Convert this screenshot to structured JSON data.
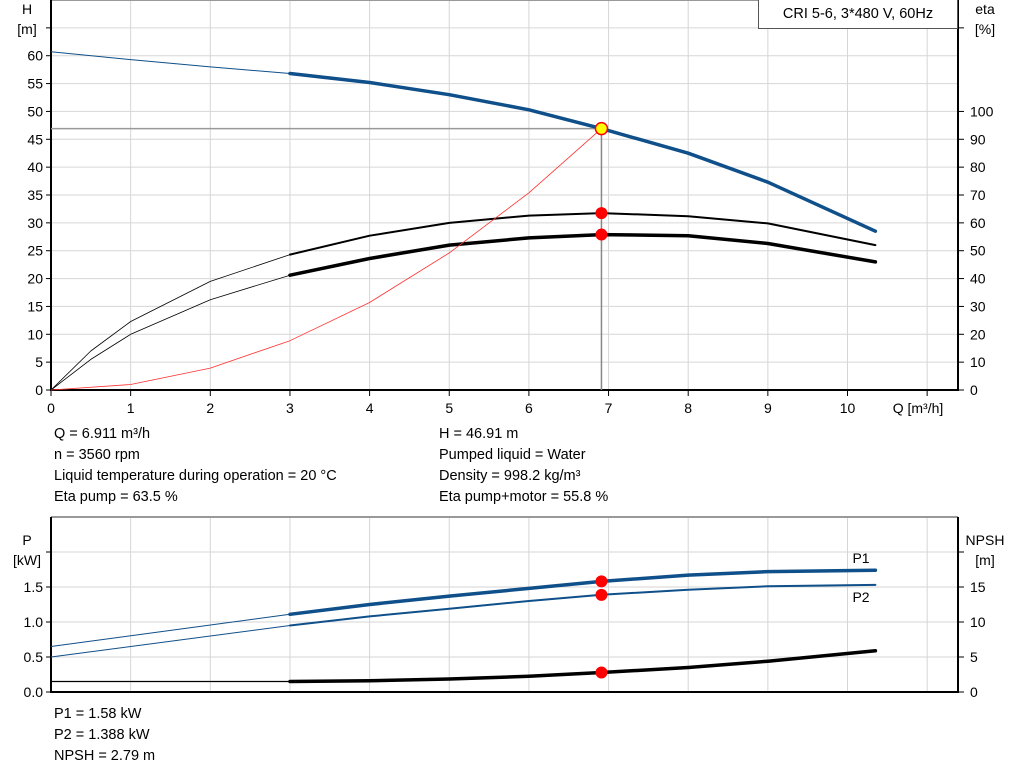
{
  "chart_data": [
    {
      "type": "line",
      "title": "CRI 5-6, 3*480 V, 60Hz",
      "xlabel": "Q [m³/h]",
      "ylabel": "H\n[m]",
      "ylabel_left_lines": [
        "H",
        "[m]"
      ],
      "ylabel_right_lines": [
        "eta",
        "[%]"
      ],
      "xlim": [
        0,
        11.4
      ],
      "ylim_left": [
        0,
        70
      ],
      "ylim_right": [
        0,
        140
      ],
      "x_ticks": [
        "0",
        "1",
        "2",
        "3",
        "4",
        "5",
        "6",
        "7",
        "8",
        "9",
        "10"
      ],
      "y_ticks_left": [
        "0",
        "5",
        "10",
        "15",
        "20",
        "25",
        "30",
        "35",
        "40",
        "45",
        "50",
        "55",
        "60"
      ],
      "y_ticks_right": [
        "0",
        "10",
        "20",
        "30",
        "40",
        "50",
        "60",
        "70",
        "80",
        "90",
        "100"
      ],
      "grid": true,
      "duty_range_start_q": 3,
      "series": [
        {
          "axis": "left",
          "color": "#0f4f8a",
          "kind": "H",
          "x": [
            0,
            1,
            2,
            3,
            4,
            5,
            6,
            6.911,
            8,
            9,
            10.35
          ],
          "y": [
            60.7,
            59.3,
            58.0,
            56.8,
            55.2,
            53.0,
            50.3,
            46.91,
            42.5,
            37.3,
            28.5
          ]
        },
        {
          "axis": "right",
          "color": "#000000",
          "kind": "eta pump",
          "x": [
            0,
            0.5,
            1,
            2,
            3,
            4,
            5,
            6,
            6.911,
            8,
            9,
            10.35
          ],
          "y": [
            0,
            14,
            24.6,
            39,
            48.6,
            55.4,
            60,
            62.6,
            63.5,
            62.4,
            59.8,
            52
          ]
        },
        {
          "axis": "right",
          "color": "#000000",
          "kind": "eta pump+motor",
          "x": [
            0,
            0.5,
            1,
            2,
            3,
            4,
            5,
            6,
            6.911,
            8,
            9,
            10.35
          ],
          "y": [
            0,
            11,
            20,
            32.4,
            41.2,
            47.2,
            52,
            54.6,
            55.8,
            55.4,
            52.6,
            46
          ]
        },
        {
          "axis": "left",
          "color": "#ff3030",
          "kind": "system",
          "x": [
            0,
            1,
            2,
            3,
            4,
            5,
            6,
            6.911
          ],
          "y": [
            0,
            0.98,
            3.93,
            8.84,
            15.7,
            24.6,
            35.4,
            46.91
          ]
        }
      ],
      "operating_point": {
        "q": 6.911,
        "h": 46.91,
        "eta_pump": 63.5,
        "eta_total": 55.8
      }
    },
    {
      "type": "line",
      "ylabel_left_lines": [
        "P",
        "[kW]"
      ],
      "ylabel_right_lines": [
        "NPSH",
        "[m]"
      ],
      "xlim": [
        0,
        11.4
      ],
      "ylim_left": [
        0,
        2.5
      ],
      "ylim_right": [
        0,
        25
      ],
      "y_ticks_left": [
        "0.0",
        "0.5",
        "1.0",
        "1.5"
      ],
      "y_ticks_right": [
        "0",
        "5",
        "10",
        "15"
      ],
      "grid": true,
      "series": [
        {
          "name": "P1",
          "axis": "left",
          "color": "#0f4f8a",
          "x": [
            0,
            3,
            4,
            5,
            6,
            6.911,
            8,
            9,
            10.35
          ],
          "y": [
            0.65,
            1.11,
            1.25,
            1.37,
            1.48,
            1.58,
            1.67,
            1.72,
            1.74
          ]
        },
        {
          "name": "P2",
          "axis": "left",
          "color": "#0f4f8a",
          "x": [
            0,
            3,
            4,
            5,
            6,
            6.911,
            8,
            9,
            10.35
          ],
          "y": [
            0.5,
            0.95,
            1.08,
            1.19,
            1.3,
            1.388,
            1.46,
            1.51,
            1.53
          ]
        },
        {
          "axis": "right",
          "color": "#000000",
          "kind": "NPSH",
          "x": [
            0,
            3,
            4,
            5,
            6,
            6.911,
            8,
            9,
            10.35
          ],
          "y": [
            1.5,
            1.5,
            1.6,
            1.85,
            2.25,
            2.79,
            3.5,
            4.4,
            5.9
          ]
        }
      ],
      "operating_point": {
        "q": 6.911,
        "p1": 1.58,
        "p2": 1.388,
        "npsh": 2.79
      }
    }
  ],
  "info_top_left": [
    "Q = 6.911 m³/h",
    "n = 3560 rpm",
    "Liquid temperature during operation = 20 °C",
    "Eta pump = 63.5 %"
  ],
  "info_top_right": [
    "H = 46.91 m",
    "Pumped liquid = Water",
    "Density = 998.2 kg/m³",
    "Eta pump+motor = 55.8 %"
  ],
  "info_bottom": [
    "P1 = 1.58 kW",
    "P2 = 1.388 kW",
    "NPSH = 2.79 m"
  ]
}
